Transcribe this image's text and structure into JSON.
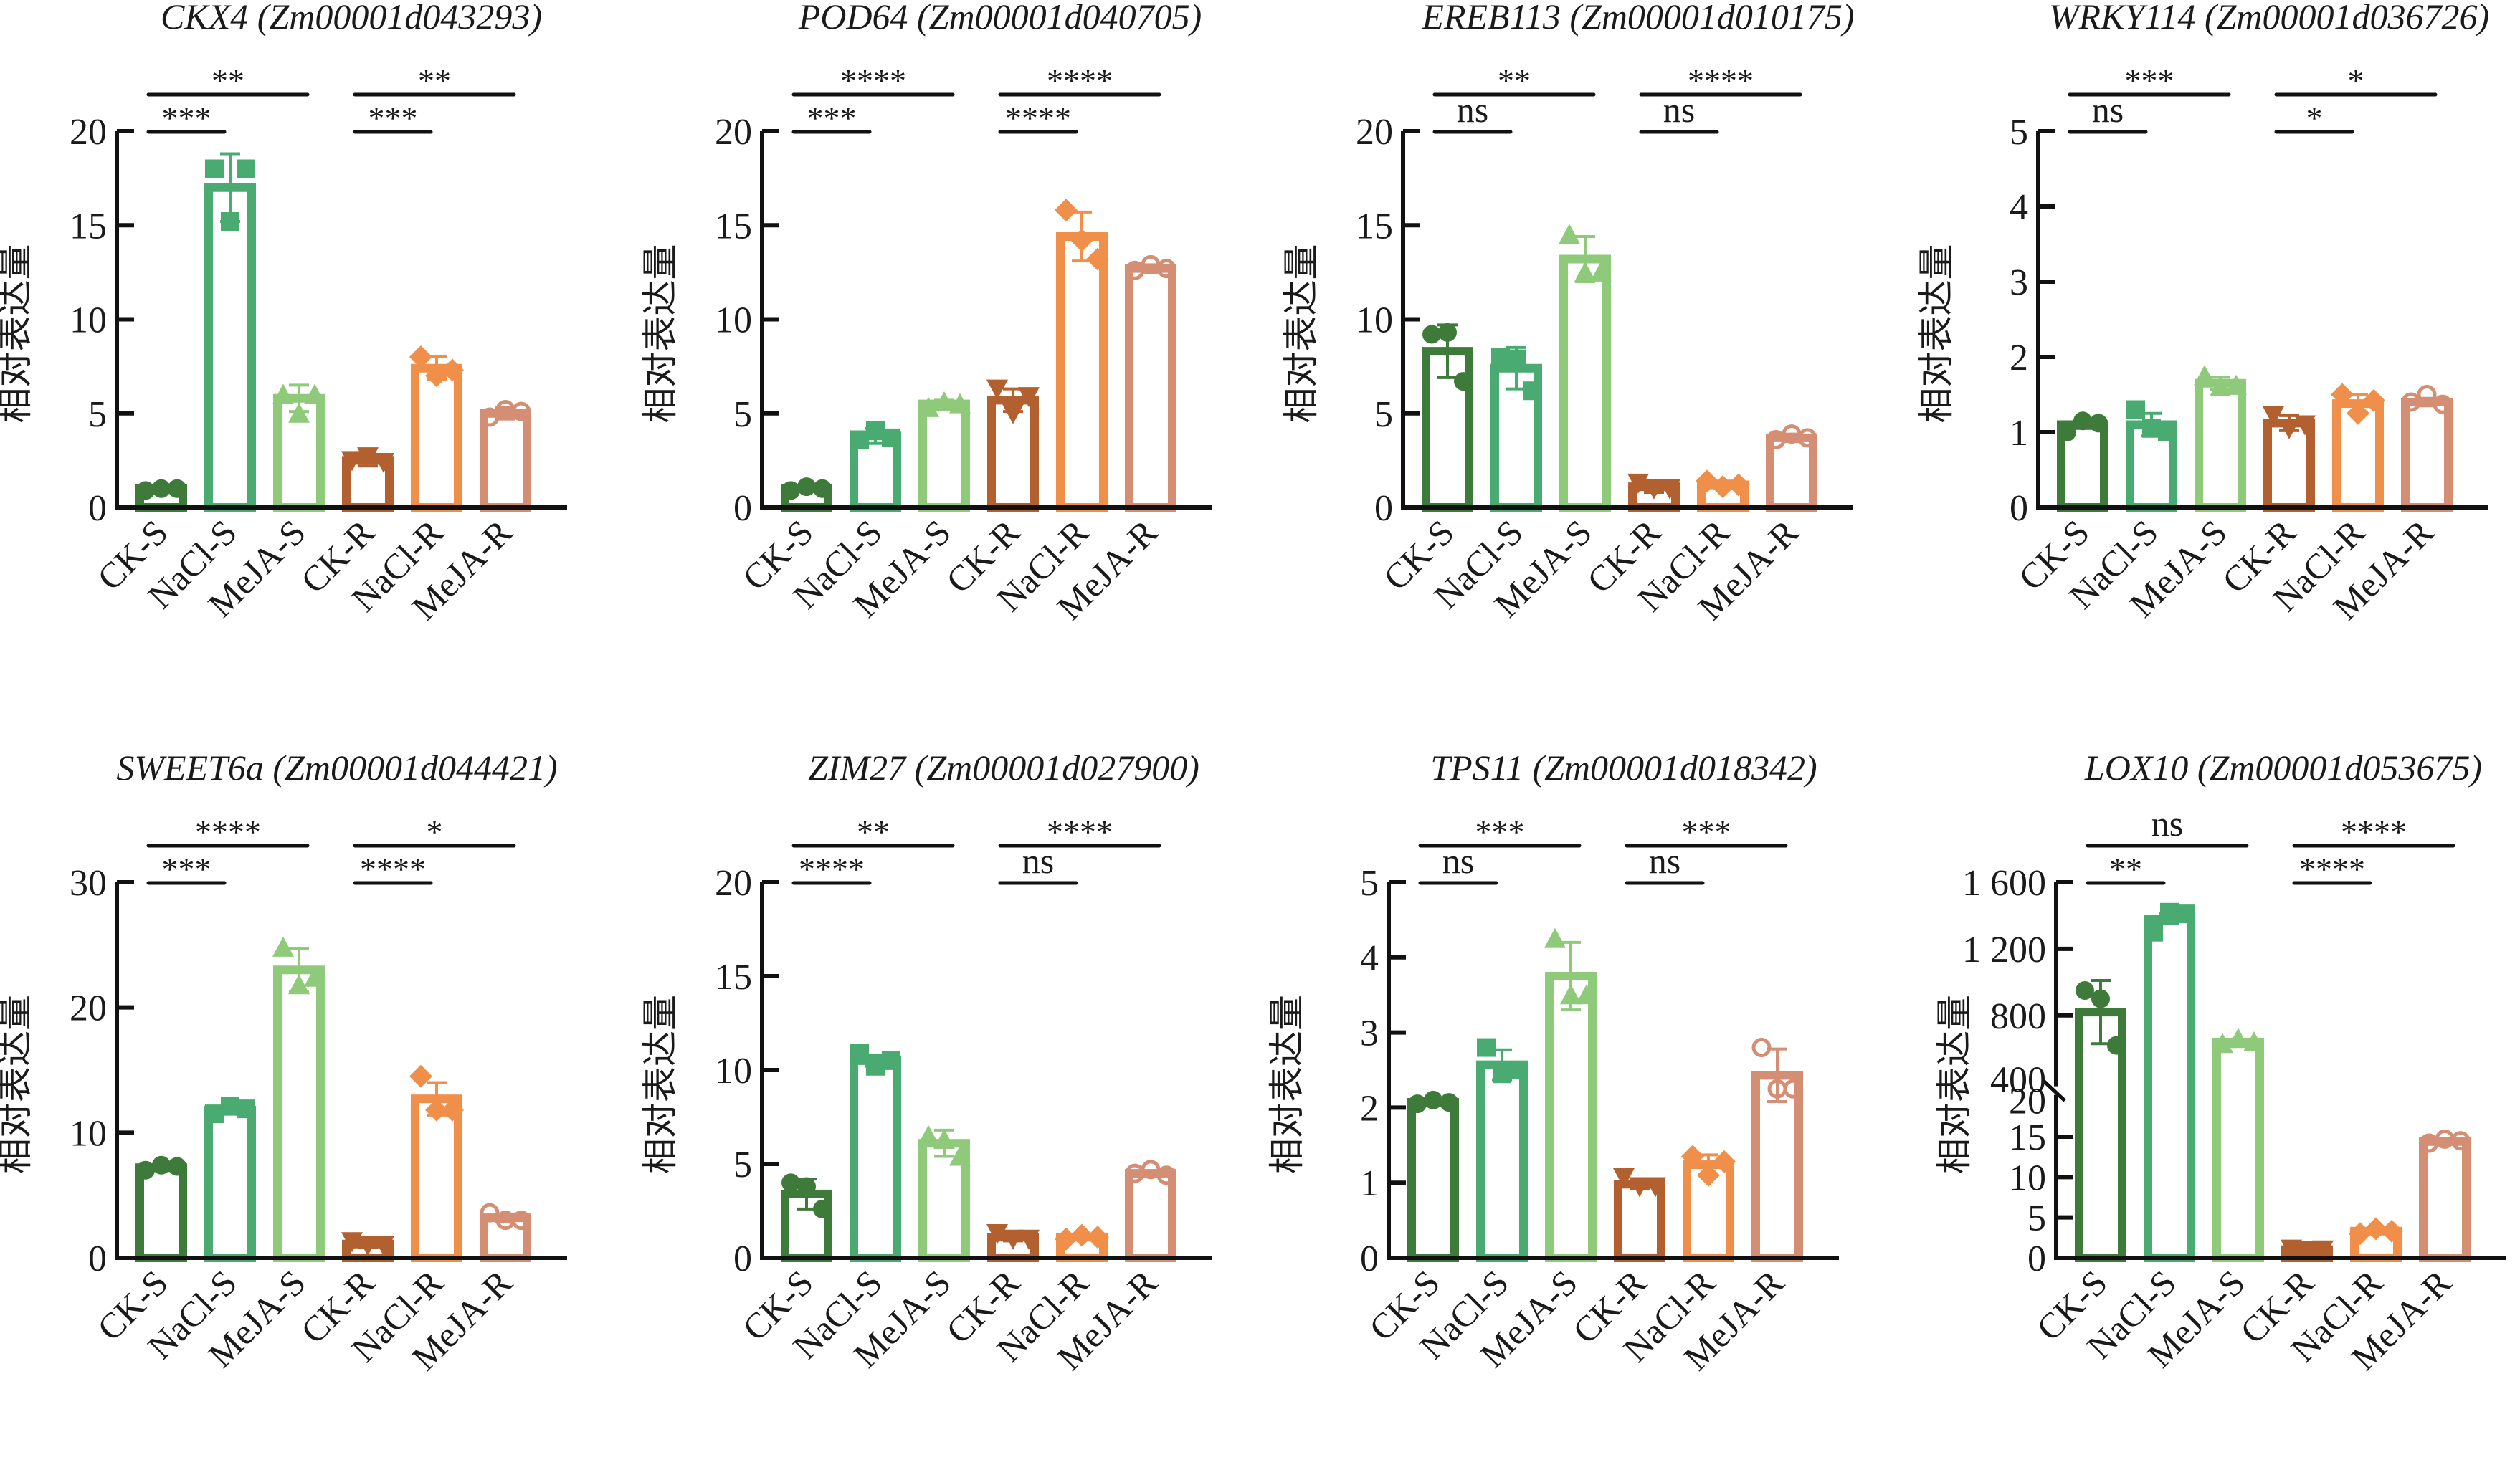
{
  "chart_data": [
    {
      "type": "bar",
      "title": "CKX4 (Zm00001d043293)",
      "ylabel": "相对表达量",
      "xlabel": "",
      "categories": [
        "CK-S",
        "NaCl-S",
        "MeJA-S",
        "CK-R",
        "NaCl-R",
        "MeJA-R"
      ],
      "values": [
        1.0,
        17.0,
        5.8,
        2.5,
        7.4,
        5.0
      ],
      "errors": [
        0.1,
        1.8,
        0.7,
        0.3,
        0.6,
        0.3
      ],
      "points": [
        [
          0.9,
          1.0,
          1.0
        ],
        [
          18.0,
          15.2,
          18.0
        ],
        [
          6.0,
          5.0,
          6.0
        ],
        [
          2.5,
          2.7,
          2.4
        ],
        [
          8.0,
          7.0,
          7.3
        ],
        [
          4.8,
          5.2,
          5.1
        ]
      ],
      "ylim": [
        0,
        20
      ],
      "yticks": [
        0,
        5,
        10,
        15,
        20
      ],
      "significance": [
        {
          "from": 0,
          "to": 1,
          "label": "***",
          "level": 1
        },
        {
          "from": 0,
          "to": 2,
          "label": "**",
          "level": 2
        },
        {
          "from": 3,
          "to": 4,
          "label": "***",
          "level": 1
        },
        {
          "from": 3,
          "to": 5,
          "label": "**",
          "level": 2
        }
      ]
    },
    {
      "type": "bar",
      "title": "POD64 (Zm00001d040705)",
      "ylabel": "相对表达量",
      "xlabel": "",
      "categories": [
        "CK-S",
        "NaCl-S",
        "MeJA-S",
        "CK-R",
        "NaCl-R",
        "MeJA-R"
      ],
      "values": [
        1.0,
        3.8,
        5.5,
        5.7,
        14.4,
        12.7
      ],
      "errors": [
        0.1,
        0.4,
        0.2,
        0.6,
        1.3,
        0.2
      ],
      "points": [
        [
          0.9,
          1.1,
          1.0
        ],
        [
          3.6,
          4.1,
          3.7
        ],
        [
          5.3,
          5.6,
          5.5
        ],
        [
          6.3,
          5.0,
          5.9
        ],
        [
          15.8,
          14.2,
          13.2
        ],
        [
          12.6,
          12.9,
          12.7
        ]
      ],
      "ylim": [
        0,
        20
      ],
      "yticks": [
        0,
        5,
        10,
        15,
        20
      ],
      "significance": [
        {
          "from": 0,
          "to": 1,
          "label": "***",
          "level": 1
        },
        {
          "from": 0,
          "to": 2,
          "label": "****",
          "level": 2
        },
        {
          "from": 3,
          "to": 4,
          "label": "****",
          "level": 1
        },
        {
          "from": 3,
          "to": 5,
          "label": "****",
          "level": 2
        }
      ]
    },
    {
      "type": "bar",
      "title": "EREB113 (Zm00001d010175)",
      "ylabel": "相对表达量",
      "xlabel": "",
      "categories": [
        "CK-S",
        "NaCl-S",
        "MeJA-S",
        "CK-R",
        "NaCl-R",
        "MeJA-R"
      ],
      "values": [
        8.3,
        7.4,
        13.2,
        1.1,
        1.2,
        3.7
      ],
      "errors": [
        1.4,
        1.1,
        1.2,
        0.3,
        0.2,
        0.2
      ],
      "points": [
        [
          9.2,
          9.3,
          6.7
        ],
        [
          8.0,
          7.9,
          6.2
        ],
        [
          14.5,
          12.5,
          12.5
        ],
        [
          1.3,
          1.0,
          1.0
        ],
        [
          1.4,
          1.1,
          1.2
        ],
        [
          3.6,
          3.9,
          3.7
        ]
      ],
      "ylim": [
        0,
        20
      ],
      "yticks": [
        0,
        5,
        10,
        15,
        20
      ],
      "significance": [
        {
          "from": 0,
          "to": 1,
          "label": "ns",
          "level": 1
        },
        {
          "from": 0,
          "to": 2,
          "label": "**",
          "level": 2
        },
        {
          "from": 3,
          "to": 4,
          "label": "ns",
          "level": 1
        },
        {
          "from": 3,
          "to": 5,
          "label": "****",
          "level": 2
        }
      ]
    },
    {
      "type": "bar",
      "title": "WRKY114 (Zm00001d036726)",
      "ylabel": "相对表达量",
      "xlabel": "",
      "categories": [
        "CK-S",
        "NaCl-S",
        "MeJA-S",
        "CK-R",
        "NaCl-R",
        "MeJA-R"
      ],
      "values": [
        1.1,
        1.1,
        1.65,
        1.12,
        1.38,
        1.4
      ],
      "errors": [
        0.05,
        0.15,
        0.08,
        0.1,
        0.12,
        0.05
      ],
      "points": [
        [
          1.0,
          1.15,
          1.12
        ],
        [
          1.3,
          1.05,
          1.0
        ],
        [
          1.75,
          1.6,
          1.62
        ],
        [
          1.22,
          1.05,
          1.1
        ],
        [
          1.5,
          1.25,
          1.42
        ],
        [
          1.4,
          1.5,
          1.37
        ]
      ],
      "ylim": [
        0,
        5
      ],
      "yticks": [
        0,
        1,
        2,
        3,
        4,
        5
      ],
      "significance": [
        {
          "from": 0,
          "to": 1,
          "label": "ns",
          "level": 1
        },
        {
          "from": 0,
          "to": 2,
          "label": "***",
          "level": 2
        },
        {
          "from": 3,
          "to": 4,
          "label": "*",
          "level": 1
        },
        {
          "from": 3,
          "to": 5,
          "label": "*",
          "level": 2
        }
      ]
    },
    {
      "type": "bar",
      "title": "SWEET6a (Zm00001d044421)",
      "ylabel": "相对表达量",
      "xlabel": "",
      "categories": [
        "CK-S",
        "NaCl-S",
        "MeJA-S",
        "CK-R",
        "NaCl-R",
        "MeJA-R"
      ],
      "values": [
        7.2,
        11.8,
        23.0,
        1.1,
        12.7,
        3.2
      ],
      "errors": [
        0.2,
        0.3,
        1.7,
        0.3,
        1.3,
        0.3
      ],
      "points": [
        [
          7.0,
          7.4,
          7.3
        ],
        [
          11.5,
          12.1,
          11.9
        ],
        [
          24.8,
          21.8,
          22.4
        ],
        [
          1.3,
          1.0,
          1.0
        ],
        [
          14.5,
          11.8,
          11.8
        ],
        [
          3.6,
          3.0,
          3.0
        ]
      ],
      "ylim": [
        0,
        30
      ],
      "yticks": [
        0,
        10,
        20,
        30
      ],
      "significance": [
        {
          "from": 0,
          "to": 1,
          "label": "***",
          "level": 1
        },
        {
          "from": 0,
          "to": 2,
          "label": "****",
          "level": 2
        },
        {
          "from": 3,
          "to": 4,
          "label": "****",
          "level": 1
        },
        {
          "from": 3,
          "to": 5,
          "label": "*",
          "level": 2
        }
      ]
    },
    {
      "type": "bar",
      "title": "ZIM27 (Zm00001d027900)",
      "ylabel": "相对表达量",
      "xlabel": "",
      "categories": [
        "CK-S",
        "NaCl-S",
        "MeJA-S",
        "CK-R",
        "NaCl-R",
        "MeJA-R"
      ],
      "values": [
        3.4,
        10.5,
        6.1,
        1.1,
        1.1,
        4.5
      ],
      "errors": [
        0.8,
        0.3,
        0.7,
        0.2,
        0.1,
        0.1
      ],
      "points": [
        [
          4.0,
          3.8,
          2.6
        ],
        [
          10.9,
          10.2,
          10.5
        ],
        [
          6.5,
          6.3,
          5.4
        ],
        [
          1.3,
          1.0,
          1.0
        ],
        [
          1.0,
          1.2,
          1.1
        ],
        [
          4.5,
          4.7,
          4.4
        ]
      ],
      "ylim": [
        0,
        20
      ],
      "yticks": [
        0,
        5,
        10,
        15,
        20
      ],
      "significance": [
        {
          "from": 0,
          "to": 1,
          "label": "****",
          "level": 1
        },
        {
          "from": 0,
          "to": 2,
          "label": "**",
          "level": 2
        },
        {
          "from": 3,
          "to": 4,
          "label": "ns",
          "level": 1
        },
        {
          "from": 3,
          "to": 5,
          "label": "****",
          "level": 2
        }
      ]
    },
    {
      "type": "bar",
      "title": "TPS11 (Zm00001d018342)",
      "ylabel": "相对表达量",
      "xlabel": "",
      "categories": [
        "CK-S",
        "NaCl-S",
        "MeJA-S",
        "CK-R",
        "NaCl-R",
        "MeJA-R"
      ],
      "values": [
        2.07,
        2.57,
        3.75,
        0.98,
        1.24,
        2.43
      ],
      "errors": [
        0.03,
        0.2,
        0.45,
        0.06,
        0.13,
        0.35
      ],
      "points": [
        [
          2.05,
          2.1,
          2.07
        ],
        [
          2.8,
          2.45,
          2.5
        ],
        [
          4.25,
          3.5,
          3.5
        ],
        [
          1.07,
          0.95,
          0.95
        ],
        [
          1.35,
          1.1,
          1.28
        ],
        [
          2.8,
          2.25,
          2.25
        ]
      ],
      "ylim": [
        0,
        5
      ],
      "yticks": [
        0,
        1,
        2,
        3,
        4,
        5
      ],
      "significance": [
        {
          "from": 0,
          "to": 1,
          "label": "ns",
          "level": 1
        },
        {
          "from": 0,
          "to": 2,
          "label": "***",
          "level": 2
        },
        {
          "from": 3,
          "to": 4,
          "label": "ns",
          "level": 1
        },
        {
          "from": 3,
          "to": 5,
          "label": "***",
          "level": 2
        }
      ]
    },
    {
      "type": "bar",
      "title": "LOX10 (Zm00001d053675)",
      "ylabel": "相对表达量",
      "xlabel": "",
      "categories": [
        "CK-S",
        "NaCl-S",
        "MeJA-S",
        "CK-R",
        "NaCl-R",
        "MeJA-R"
      ],
      "values": [
        820,
        1380,
        640,
        1.0,
        3.3,
        14.4
      ],
      "errors": [
        190,
        30,
        15,
        0.2,
        0.2,
        0.2
      ],
      "points": [
        [
          950,
          900,
          620
        ],
        [
          1300,
          1420,
          1410
        ],
        [
          630,
          660,
          640
        ],
        [
          1.1,
          0.9,
          1.0
        ],
        [
          3.0,
          3.6,
          3.3
        ],
        [
          14.2,
          14.7,
          14.5
        ]
      ],
      "ylim": [
        0,
        1600
      ],
      "axis_break": {
        "lower": [
          0,
          20
        ],
        "upper": [
          400,
          1600
        ]
      },
      "yticks": [
        0,
        5,
        10,
        15,
        20,
        400,
        800,
        1200,
        1600
      ],
      "ytick_labels": [
        "0",
        "5",
        "10",
        "15",
        "20",
        "400",
        "800",
        "1 200",
        "1 600"
      ],
      "significance": [
        {
          "from": 0,
          "to": 1,
          "label": "**",
          "level": 1
        },
        {
          "from": 0,
          "to": 2,
          "label": "ns",
          "level": 2
        },
        {
          "from": 3,
          "to": 4,
          "label": "****",
          "level": 1
        },
        {
          "from": 3,
          "to": 5,
          "label": "****",
          "level": 2
        }
      ]
    }
  ],
  "series_styles": [
    {
      "name": "CK-S",
      "color": "#3e7a3a",
      "marker": "circle"
    },
    {
      "name": "NaCl-S",
      "color": "#4aab72",
      "marker": "square"
    },
    {
      "name": "MeJA-S",
      "color": "#8fc97a",
      "marker": "triangle-up"
    },
    {
      "name": "CK-R",
      "color": "#b2602f",
      "marker": "triangle-down"
    },
    {
      "name": "NaCl-R",
      "color": "#f08f4a",
      "marker": "diamond"
    },
    {
      "name": "MeJA-R",
      "color": "#d38e73",
      "marker": "open-circle"
    }
  ]
}
